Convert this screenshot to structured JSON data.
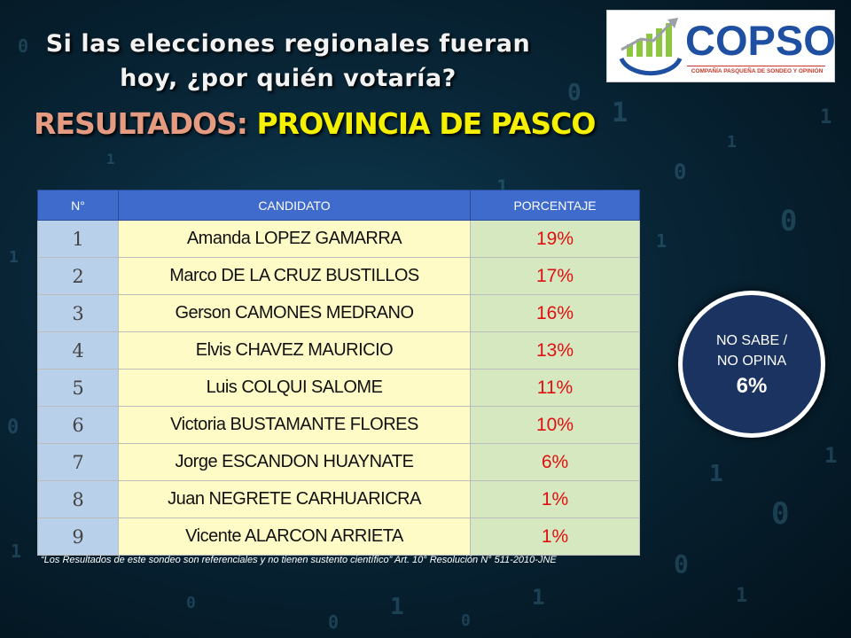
{
  "header": {
    "question_line1": "Si las elecciones regionales  fueran",
    "question_line2": "hoy, ¿por quién votaría?",
    "results_prefix": "RESULTADOS:",
    "results_place": "PROVINCIA DE PASCO"
  },
  "logo": {
    "name": "COPSO",
    "tagline": "COMPAÑÍA PASQUEÑA DE SONDEO Y OPINIÓN"
  },
  "table": {
    "columns": [
      "N°",
      "CANDIDATO",
      "PORCENTAJE"
    ],
    "rows": [
      {
        "n": "1",
        "name": "Amanda LOPEZ GAMARRA",
        "pct": "19%"
      },
      {
        "n": "2",
        "name": "Marco DE LA CRUZ BUSTILLOS",
        "pct": "17%"
      },
      {
        "n": "3",
        "name": "Gerson CAMONES MEDRANO",
        "pct": "16%"
      },
      {
        "n": "4",
        "name": "Elvis CHAVEZ MAURICIO",
        "pct": "13%"
      },
      {
        "n": "5",
        "name": "Luis COLQUI SALOME",
        "pct": "11%"
      },
      {
        "n": "6",
        "name": "Victoria BUSTAMANTE FLORES",
        "pct": "10%"
      },
      {
        "n": "7",
        "name": "Jorge ESCANDON HUAYNATE",
        "pct": "6%"
      },
      {
        "n": "8",
        "name": "Juan NEGRETE CARHUARICRA",
        "pct": "1%"
      },
      {
        "n": "9",
        "name": "Vicente ALARCON ARRIETA",
        "pct": "1%"
      }
    ]
  },
  "no_opinion": {
    "line1": "NO SABE /",
    "line2": "NO OPINA",
    "pct": "6%"
  },
  "footnote": "“Los Resultados de este sondeo son referenciales y no tienen sustento científico” Art. 10°  Resolución N° 511-2010-JNE",
  "colors": {
    "header_blue": "#3f6ccc",
    "number_cell": "#b9d0ea",
    "candidate_cell": "#fffbc6",
    "percent_cell": "#d6e8c0",
    "percent_text": "#e01010",
    "circle": "#1a3360",
    "place_yellow": "#f4f000"
  }
}
